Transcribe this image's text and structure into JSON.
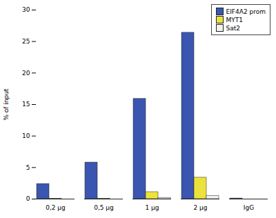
{
  "chart_data": {
    "type": "bar",
    "y_label": "% of input",
    "categories": [
      "0,2 µg",
      "0,5 µg",
      "1 µg",
      "2 µg",
      "IgG"
    ],
    "series": [
      {
        "name": "EIF4A2 prom",
        "color": "#3a56b0",
        "values": [
          2.4,
          5.8,
          15.9,
          26.4,
          0.1
        ]
      },
      {
        "name": "MYT1",
        "color": "#ece23c",
        "values": [
          0.05,
          0.05,
          1.1,
          3.4,
          0
        ]
      },
      {
        "name": "Sat2",
        "color": "#f4f4ee",
        "values": [
          0,
          0,
          0.2,
          0.5,
          0
        ]
      }
    ],
    "ylim": [
      0,
      30
    ],
    "yticks": [
      0,
      5,
      10,
      15,
      20,
      25,
      30
    ],
    "grid": false,
    "legend": "top-right"
  }
}
